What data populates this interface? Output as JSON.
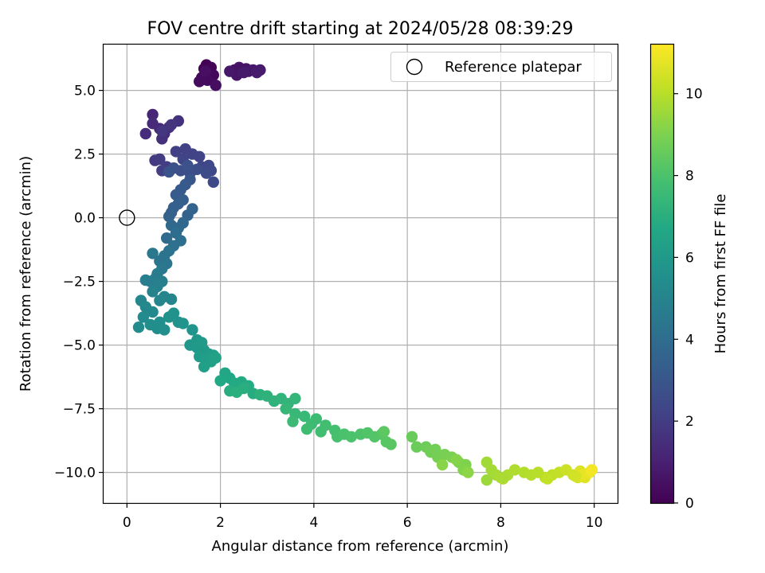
{
  "chart_data": {
    "type": "scatter",
    "title": "FOV centre drift starting at 2024/05/28 08:39:29",
    "xlabel": "Angular distance from reference (arcmin)",
    "ylabel": "Rotation from reference (arcmin)",
    "xlim": [
      -0.5,
      10.5
    ],
    "ylim": [
      -11.2,
      6.8
    ],
    "xticks": [
      0,
      2,
      4,
      6,
      8,
      10
    ],
    "xtick_labels": [
      "0",
      "2",
      "4",
      "6",
      "8",
      "10"
    ],
    "yticks": [
      -10.0,
      -7.5,
      -5.0,
      -2.5,
      0.0,
      2.5,
      5.0
    ],
    "ytick_labels": [
      "−10.0",
      "−7.5",
      "−5.0",
      "−2.5",
      "0.0",
      "2.5",
      "5.0"
    ],
    "grid": true,
    "colormap": "viridis",
    "colorbar": {
      "label": "Hours from first FF file",
      "range": [
        0,
        11.2
      ],
      "ticks": [
        0,
        2,
        4,
        6,
        8,
        10
      ],
      "tick_labels": [
        "0",
        "2",
        "4",
        "6",
        "8",
        "10"
      ]
    },
    "legend": {
      "position": "upper right",
      "entries": [
        {
          "label": "Reference platepar",
          "marker": "open-circle"
        }
      ]
    },
    "reference_point": {
      "x": 0.0,
      "y": 0.0
    },
    "points": [
      [
        1.7,
        6.0,
        0.0
      ],
      [
        1.65,
        5.85,
        0.05
      ],
      [
        1.8,
        5.9,
        0.1
      ],
      [
        1.75,
        5.7,
        0.15
      ],
      [
        1.85,
        5.6,
        0.2
      ],
      [
        1.6,
        5.5,
        0.25
      ],
      [
        1.72,
        5.4,
        0.3
      ],
      [
        1.55,
        5.35,
        0.35
      ],
      [
        1.9,
        5.2,
        0.4
      ],
      [
        1.68,
        5.75,
        0.45
      ],
      [
        2.3,
        5.8,
        0.5
      ],
      [
        2.4,
        5.9,
        0.55
      ],
      [
        2.55,
        5.85,
        0.6
      ],
      [
        2.35,
        5.6,
        0.65
      ],
      [
        2.6,
        5.75,
        0.7
      ],
      [
        2.2,
        5.75,
        0.72
      ],
      [
        2.7,
        5.8,
        0.75
      ],
      [
        2.85,
        5.8,
        0.8
      ],
      [
        2.5,
        5.7,
        0.82
      ],
      [
        2.78,
        5.7,
        0.85
      ],
      [
        0.55,
        4.05,
        1.2
      ],
      [
        0.7,
        3.5,
        1.3
      ],
      [
        0.55,
        3.7,
        1.35
      ],
      [
        0.4,
        3.3,
        1.4
      ],
      [
        0.8,
        3.3,
        1.45
      ],
      [
        0.9,
        3.55,
        1.5
      ],
      [
        0.75,
        3.1,
        1.55
      ],
      [
        1.1,
        3.8,
        1.6
      ],
      [
        0.95,
        3.65,
        1.7
      ],
      [
        0.75,
        3.4,
        1.75
      ],
      [
        0.6,
        2.25,
        1.9
      ],
      [
        0.7,
        2.3,
        1.95
      ],
      [
        0.85,
        2.0,
        2.0
      ],
      [
        0.75,
        1.85,
        2.05
      ],
      [
        1.05,
        2.6,
        2.1
      ],
      [
        1.25,
        2.7,
        2.15
      ],
      [
        1.4,
        2.5,
        2.2
      ],
      [
        1.55,
        2.4,
        2.25
      ],
      [
        1.2,
        2.3,
        2.3
      ],
      [
        1.6,
        2.0,
        2.35
      ],
      [
        1.75,
        2.05,
        2.4
      ],
      [
        1.8,
        1.85,
        2.45
      ],
      [
        1.85,
        1.4,
        2.5
      ],
      [
        1.7,
        1.75,
        2.55
      ],
      [
        1.5,
        1.9,
        2.6
      ],
      [
        1.35,
        1.75,
        2.65
      ],
      [
        1.15,
        1.85,
        2.7
      ],
      [
        1.0,
        1.95,
        2.75
      ],
      [
        1.3,
        2.05,
        2.8
      ],
      [
        0.9,
        1.8,
        2.85
      ],
      [
        1.35,
        1.5,
        3.0
      ],
      [
        1.25,
        1.3,
        3.1
      ],
      [
        1.15,
        1.1,
        3.15
      ],
      [
        1.05,
        0.9,
        3.2
      ],
      [
        1.2,
        0.7,
        3.3
      ],
      [
        1.1,
        0.55,
        3.35
      ],
      [
        1.0,
        0.4,
        3.4
      ],
      [
        0.95,
        0.2,
        3.45
      ],
      [
        0.9,
        0.05,
        3.5
      ],
      [
        1.3,
        0.1,
        3.55
      ],
      [
        1.4,
        0.35,
        3.6
      ],
      [
        1.2,
        -0.2,
        3.7
      ],
      [
        1.1,
        -0.4,
        3.75
      ],
      [
        0.95,
        -0.3,
        3.8
      ],
      [
        0.85,
        -0.8,
        3.9
      ],
      [
        1.05,
        -0.6,
        4.0
      ],
      [
        1.15,
        -0.9,
        4.05
      ],
      [
        1.0,
        -1.1,
        4.1
      ],
      [
        0.9,
        -1.3,
        4.2
      ],
      [
        0.8,
        -1.5,
        4.25
      ],
      [
        0.7,
        -1.7,
        4.3
      ],
      [
        0.85,
        -1.8,
        4.4
      ],
      [
        0.75,
        -2.0,
        4.45
      ],
      [
        0.55,
        -1.4,
        4.5
      ],
      [
        0.65,
        -2.2,
        4.6
      ],
      [
        0.6,
        -2.4,
        4.65
      ],
      [
        0.5,
        -2.5,
        4.7
      ],
      [
        0.4,
        -2.45,
        4.75
      ],
      [
        0.75,
        -2.5,
        4.8
      ],
      [
        0.65,
        -2.7,
        4.85
      ],
      [
        0.55,
        -2.9,
        4.95
      ],
      [
        0.8,
        -3.1,
        5.0
      ],
      [
        0.95,
        -3.2,
        5.05
      ],
      [
        0.7,
        -3.25,
        5.1
      ],
      [
        0.3,
        -3.25,
        5.15
      ],
      [
        0.4,
        -3.5,
        5.2
      ],
      [
        0.55,
        -3.7,
        5.25
      ],
      [
        0.35,
        -3.9,
        5.3
      ],
      [
        0.25,
        -4.3,
        5.35
      ],
      [
        0.5,
        -4.2,
        5.4
      ],
      [
        0.65,
        -4.35,
        5.45
      ],
      [
        0.8,
        -4.4,
        5.5
      ],
      [
        0.7,
        -4.1,
        5.55
      ],
      [
        0.9,
        -3.9,
        5.6
      ],
      [
        1.1,
        -4.1,
        5.65
      ],
      [
        1.0,
        -3.75,
        5.7
      ],
      [
        1.2,
        -4.15,
        5.75
      ],
      [
        1.4,
        -4.4,
        5.8
      ],
      [
        1.5,
        -4.8,
        5.85
      ],
      [
        1.35,
        -5.0,
        5.9
      ],
      [
        1.5,
        -5.1,
        5.95
      ],
      [
        1.65,
        -5.2,
        6.0
      ],
      [
        1.6,
        -4.9,
        6.05
      ],
      [
        1.75,
        -5.35,
        6.1
      ],
      [
        1.55,
        -5.45,
        6.15
      ],
      [
        1.7,
        -5.55,
        6.2
      ],
      [
        1.85,
        -5.4,
        6.25
      ],
      [
        1.8,
        -5.65,
        6.3
      ],
      [
        1.65,
        -5.85,
        6.35
      ],
      [
        1.9,
        -5.5,
        6.4
      ],
      [
        2.1,
        -6.1,
        6.6
      ],
      [
        2.2,
        -6.3,
        6.65
      ],
      [
        2.0,
        -6.4,
        6.7
      ],
      [
        2.3,
        -6.5,
        6.75
      ],
      [
        2.45,
        -6.45,
        6.8
      ],
      [
        2.6,
        -6.6,
        6.85
      ],
      [
        2.7,
        -6.9,
        6.9
      ],
      [
        2.2,
        -6.8,
        6.95
      ],
      [
        2.5,
        -6.7,
        7.0
      ],
      [
        2.35,
        -6.85,
        7.05
      ],
      [
        2.85,
        -6.95,
        7.1
      ],
      [
        3.0,
        -7.0,
        7.15
      ],
      [
        3.15,
        -7.2,
        7.2
      ],
      [
        3.3,
        -7.1,
        7.25
      ],
      [
        3.45,
        -7.3,
        7.3
      ],
      [
        3.6,
        -7.1,
        7.35
      ],
      [
        3.4,
        -7.5,
        7.4
      ],
      [
        3.6,
        -7.7,
        7.45
      ],
      [
        3.8,
        -7.8,
        7.5
      ],
      [
        3.55,
        -8.0,
        7.55
      ],
      [
        3.95,
        -8.1,
        7.6
      ],
      [
        4.05,
        -7.9,
        7.65
      ],
      [
        3.85,
        -8.3,
        7.7
      ],
      [
        4.15,
        -8.4,
        7.75
      ],
      [
        4.25,
        -8.15,
        7.8
      ],
      [
        4.45,
        -8.35,
        7.85
      ],
      [
        4.5,
        -8.6,
        7.9
      ],
      [
        4.65,
        -8.5,
        7.95
      ],
      [
        4.8,
        -8.6,
        8.0
      ],
      [
        5.0,
        -8.5,
        8.05
      ],
      [
        5.15,
        -8.45,
        8.1
      ],
      [
        5.3,
        -8.6,
        8.15
      ],
      [
        5.45,
        -8.5,
        8.2
      ],
      [
        5.55,
        -8.8,
        8.25
      ],
      [
        5.65,
        -8.9,
        8.3
      ],
      [
        5.5,
        -8.4,
        8.35
      ],
      [
        6.1,
        -8.6,
        8.6
      ],
      [
        6.2,
        -9.0,
        8.65
      ],
      [
        6.4,
        -9.0,
        8.7
      ],
      [
        6.5,
        -9.2,
        8.75
      ],
      [
        6.6,
        -9.1,
        8.8
      ],
      [
        6.65,
        -9.4,
        8.85
      ],
      [
        6.8,
        -9.3,
        8.9
      ],
      [
        6.95,
        -9.4,
        8.95
      ],
      [
        7.1,
        -9.6,
        9.0
      ],
      [
        7.25,
        -9.7,
        9.05
      ],
      [
        7.2,
        -9.9,
        9.1
      ],
      [
        7.05,
        -9.5,
        9.15
      ],
      [
        6.75,
        -9.7,
        9.2
      ],
      [
        7.3,
        -10.0,
        9.25
      ],
      [
        7.7,
        -9.6,
        9.6
      ],
      [
        7.8,
        -9.9,
        9.65
      ],
      [
        7.9,
        -10.1,
        9.7
      ],
      [
        8.0,
        -10.2,
        9.75
      ],
      [
        8.15,
        -10.1,
        9.8
      ],
      [
        8.3,
        -9.9,
        9.85
      ],
      [
        8.5,
        -10.0,
        9.9
      ],
      [
        8.65,
        -10.1,
        9.95
      ],
      [
        8.8,
        -10.0,
        10.0
      ],
      [
        8.95,
        -10.2,
        10.05
      ],
      [
        9.1,
        -10.1,
        10.1
      ],
      [
        9.25,
        -10.0,
        10.2
      ],
      [
        9.4,
        -9.9,
        10.3
      ],
      [
        9.55,
        -10.1,
        10.4
      ],
      [
        9.65,
        -10.2,
        10.5
      ],
      [
        9.7,
        -9.95,
        10.6
      ],
      [
        9.8,
        -10.2,
        10.7
      ],
      [
        9.75,
        -10.1,
        10.8
      ],
      [
        9.9,
        -10.0,
        10.9
      ],
      [
        9.95,
        -9.9,
        11.0
      ],
      [
        7.7,
        -10.3,
        9.55
      ],
      [
        8.05,
        -10.25,
        9.78
      ],
      [
        9.0,
        -10.25,
        10.15
      ],
      [
        9.6,
        -10.15,
        10.45
      ]
    ]
  }
}
